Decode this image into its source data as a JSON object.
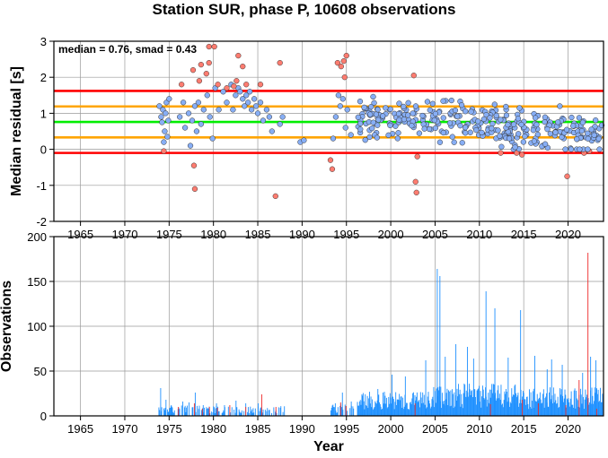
{
  "title": "Station SUR, phase P, 10608 observations",
  "chart_data": [
    {
      "id": "residuals",
      "type": "scatter",
      "ylabel": "Median residual [s]",
      "xlim": [
        1962,
        2024
      ],
      "ylim": [
        -2,
        3
      ],
      "xticks": [
        1965,
        1970,
        1975,
        1980,
        1985,
        1990,
        1995,
        2000,
        2005,
        2010,
        2015,
        2020
      ],
      "yticks": [
        -2,
        -1,
        0,
        1,
        2,
        3
      ],
      "grid": true,
      "annotation": "median = 0.76, smad = 0.43",
      "hlines": [
        {
          "y": 1.62,
          "color": "#ff0000"
        },
        {
          "y": 1.19,
          "color": "#ffa500"
        },
        {
          "y": 0.76,
          "color": "#00ee00"
        },
        {
          "y": 0.33,
          "color": "#ffa500"
        },
        {
          "y": -0.1,
          "color": "#ff0000"
        }
      ],
      "colors": {
        "inlier": "#87aef5",
        "outlier": "#ff7c70"
      },
      "series": [
        {
          "kind": "inlier",
          "points": [
            [
              1973.9,
              1.2
            ],
            [
              1974.1,
              0.9
            ],
            [
              1974.3,
              1.1
            ],
            [
              1974.5,
              0.5
            ],
            [
              1974.7,
              1.3
            ],
            [
              1974.9,
              0.8
            ],
            [
              1974.4,
              0.2
            ],
            [
              1974.6,
              1.0
            ],
            [
              1975.0,
              1.4
            ],
            [
              1974.8,
              0.35
            ],
            [
              1974.2,
              0.75
            ],
            [
              1976.2,
              0.9
            ],
            [
              1976.6,
              1.3
            ],
            [
              1976.8,
              0.6
            ],
            [
              1977.2,
              1.0
            ],
            [
              1977.4,
              0.1
            ],
            [
              1977.6,
              0.8
            ],
            [
              1977.9,
              1.2
            ],
            [
              1978.1,
              0.5
            ],
            [
              1978.3,
              1.3
            ],
            [
              1978.6,
              0.7
            ],
            [
              1978.9,
              1.1
            ],
            [
              1979.3,
              1.5
            ],
            [
              1979.6,
              0.9
            ],
            [
              1979.9,
              0.3
            ],
            [
              1980.2,
              1.7
            ],
            [
              1980.6,
              1.1
            ],
            [
              1981.1,
              1.6
            ],
            [
              1981.5,
              1.3
            ],
            [
              1982.0,
              1.8
            ],
            [
              1982.2,
              1.1
            ],
            [
              1982.5,
              1.5
            ],
            [
              1982.8,
              1.7
            ],
            [
              1983.0,
              1.6
            ],
            [
              1983.3,
              1.4
            ],
            [
              1983.5,
              1.2
            ],
            [
              1983.7,
              1.5
            ],
            [
              1983.9,
              1.3
            ],
            [
              1984.1,
              1.6
            ],
            [
              1984.3,
              1.1
            ],
            [
              1984.6,
              1.4
            ],
            [
              1984.8,
              1.2
            ],
            [
              1985.0,
              1.0
            ],
            [
              1985.3,
              1.3
            ],
            [
              1985.6,
              0.8
            ],
            [
              1986.0,
              1.1
            ],
            [
              1986.3,
              0.9
            ],
            [
              1986.6,
              0.5
            ],
            [
              1987.5,
              0.7
            ],
            [
              1987.8,
              0.9
            ],
            [
              1989.8,
              0.2
            ],
            [
              1990.2,
              0.25
            ],
            [
              1993.5,
              0.3
            ],
            [
              1993.8,
              0.9
            ],
            [
              1994.1,
              1.5
            ],
            [
              1994.3,
              1.2
            ],
            [
              1994.6,
              1.4
            ],
            [
              1994.9,
              0.6
            ],
            [
              1995.1,
              1.1
            ],
            [
              1995.5,
              0.4
            ]
          ]
        },
        {
          "kind": "outlier",
          "points": [
            [
              1974.4,
              -0.05
            ],
            [
              1976.4,
              1.8
            ],
            [
              1977.7,
              2.2
            ],
            [
              1977.8,
              -0.45
            ],
            [
              1977.9,
              -1.1
            ],
            [
              1978.4,
              1.9
            ],
            [
              1978.6,
              2.35
            ],
            [
              1979.2,
              2.1
            ],
            [
              1979.5,
              2.4
            ],
            [
              1979.5,
              2.85
            ],
            [
              1980.1,
              2.85
            ],
            [
              1980.5,
              1.8
            ],
            [
              1981.5,
              1.7
            ],
            [
              1982.3,
              1.75
            ],
            [
              1982.6,
              1.9
            ],
            [
              1982.8,
              2.6
            ],
            [
              1983.3,
              2.3
            ],
            [
              1983.7,
              1.8
            ],
            [
              1985.3,
              1.8
            ],
            [
              1987.0,
              -1.3
            ],
            [
              1987.5,
              2.4
            ],
            [
              1993.2,
              -0.3
            ],
            [
              1993.4,
              -0.55
            ],
            [
              1994.0,
              2.4
            ],
            [
              1994.4,
              2.3
            ],
            [
              1994.7,
              2.45
            ],
            [
              1994.8,
              2.0
            ],
            [
              1995.0,
              2.6
            ],
            [
              2002.6,
              2.05
            ],
            [
              2002.8,
              -0.9
            ],
            [
              2002.9,
              -1.2
            ],
            [
              2003.0,
              -0.2
            ],
            [
              2012.4,
              -0.1
            ],
            [
              2014.2,
              -0.1
            ],
            [
              2014.8,
              -0.15
            ],
            [
              2019.9,
              -0.75
            ],
            [
              2021.8,
              -0.1
            ],
            [
              2022.4,
              -0.05
            ]
          ]
        }
      ]
    },
    {
      "id": "observations",
      "type": "bar",
      "xlabel": "Year",
      "ylabel": "Observations",
      "xlim": [
        1962,
        2024
      ],
      "ylim": [
        0,
        200
      ],
      "xticks": [
        1965,
        1970,
        1975,
        1980,
        1985,
        1990,
        1995,
        2000,
        2005,
        2010,
        2015,
        2020
      ],
      "yticks": [
        0,
        50,
        100,
        150,
        200
      ],
      "grid": true,
      "colors": {
        "inlier": "#1e90ff",
        "outlier": "#ee2a2a"
      },
      "peaks": [
        [
          1974.0,
          31
        ],
        [
          1974.6,
          18
        ],
        [
          1975.2,
          12
        ],
        [
          1976.5,
          16
        ],
        [
          1977.2,
          15
        ],
        [
          1977.9,
          26
        ],
        [
          1978.8,
          12
        ],
        [
          1980.3,
          14
        ],
        [
          1981.2,
          12
        ],
        [
          1982.5,
          17
        ],
        [
          1983.6,
          14
        ],
        [
          1985.0,
          14
        ],
        [
          1987.5,
          9
        ],
        [
          1993.7,
          14
        ],
        [
          1994.5,
          26
        ],
        [
          1995.5,
          16
        ],
        [
          1996.7,
          24
        ],
        [
          1998.5,
          30
        ],
        [
          2000.1,
          46
        ],
        [
          2001.6,
          44
        ],
        [
          2003.9,
          62
        ],
        [
          2005.2,
          164
        ],
        [
          2005.5,
          156
        ],
        [
          2006.1,
          66
        ],
        [
          2007.3,
          80
        ],
        [
          2008.6,
          77
        ],
        [
          2009.3,
          64
        ],
        [
          2010.7,
          139
        ],
        [
          2011.7,
          120
        ],
        [
          2013.2,
          65
        ],
        [
          2014.6,
          118
        ],
        [
          2016.2,
          67
        ],
        [
          2017.6,
          52
        ],
        [
          2018.1,
          63
        ],
        [
          2019.3,
          57
        ],
        [
          2021.6,
          48
        ],
        [
          2022.5,
          66
        ],
        [
          2023.1,
          62
        ]
      ],
      "outlier_bars": [
        [
          1976.0,
          10
        ],
        [
          1977.8,
          14
        ],
        [
          1978.7,
          8
        ],
        [
          1979.5,
          10
        ],
        [
          1980.4,
          9
        ],
        [
          1981.8,
          12
        ],
        [
          1983.6,
          10
        ],
        [
          1985.4,
          24
        ],
        [
          1987.0,
          10
        ],
        [
          1994.3,
          15
        ],
        [
          1994.9,
          11
        ],
        [
          2002.7,
          14
        ],
        [
          2011.2,
          13
        ],
        [
          2014.8,
          18
        ],
        [
          2016.6,
          14
        ],
        [
          2019.7,
          12
        ],
        [
          2021.2,
          40
        ],
        [
          2022.2,
          182
        ],
        [
          2023.2,
          8
        ]
      ]
    }
  ]
}
